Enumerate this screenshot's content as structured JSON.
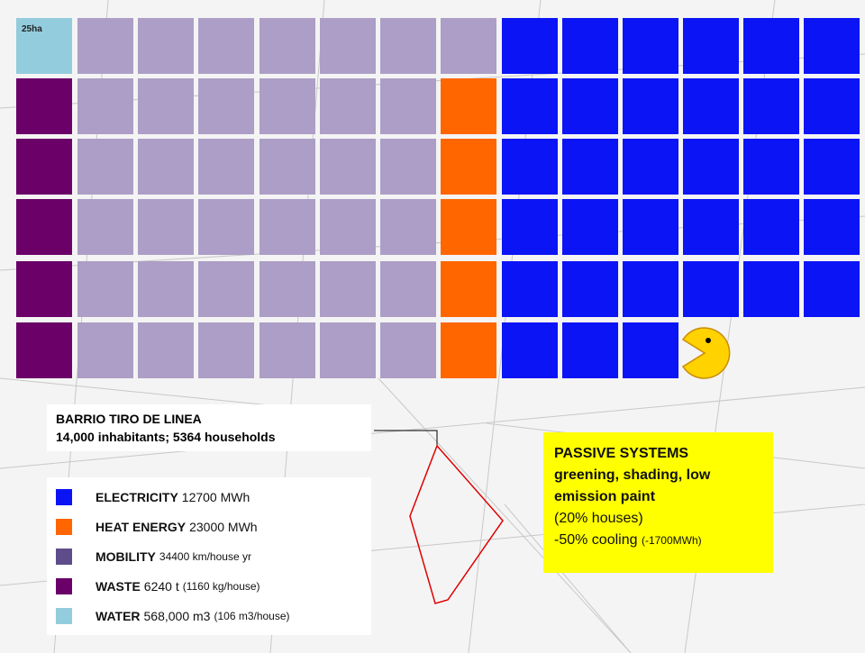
{
  "tile_label": "25ha",
  "site": {
    "title": "BARRIO TIRO DE LINEA",
    "subtitle": "14,000 inhabitants; 5364 households"
  },
  "legend": [
    {
      "name": "ELECTRICITY",
      "value": "12700 MWh",
      "color": "#0a14f5"
    },
    {
      "name": "HEAT ENERGY",
      "value": "23000 MWh",
      "color": "#ff6600"
    },
    {
      "name": "MOBILITY",
      "note": "34400 km/house yr",
      "color": "#5e4d8a"
    },
    {
      "name": "WASTE",
      "value": "6240 t",
      "note": "(1160 kg/house)",
      "color": "#6a0068"
    },
    {
      "name": "WATER",
      "value": "568,000 m3",
      "note": "(106 m3/house)",
      "color": "#93cddd"
    }
  ],
  "passive": {
    "title": "PASSIVE SYSTEMS",
    "subtitle": "greening, shading, low emission paint",
    "share": "(20% houses)",
    "effect": "-50% cooling",
    "effect_note": "(-1700MWh)"
  }
}
